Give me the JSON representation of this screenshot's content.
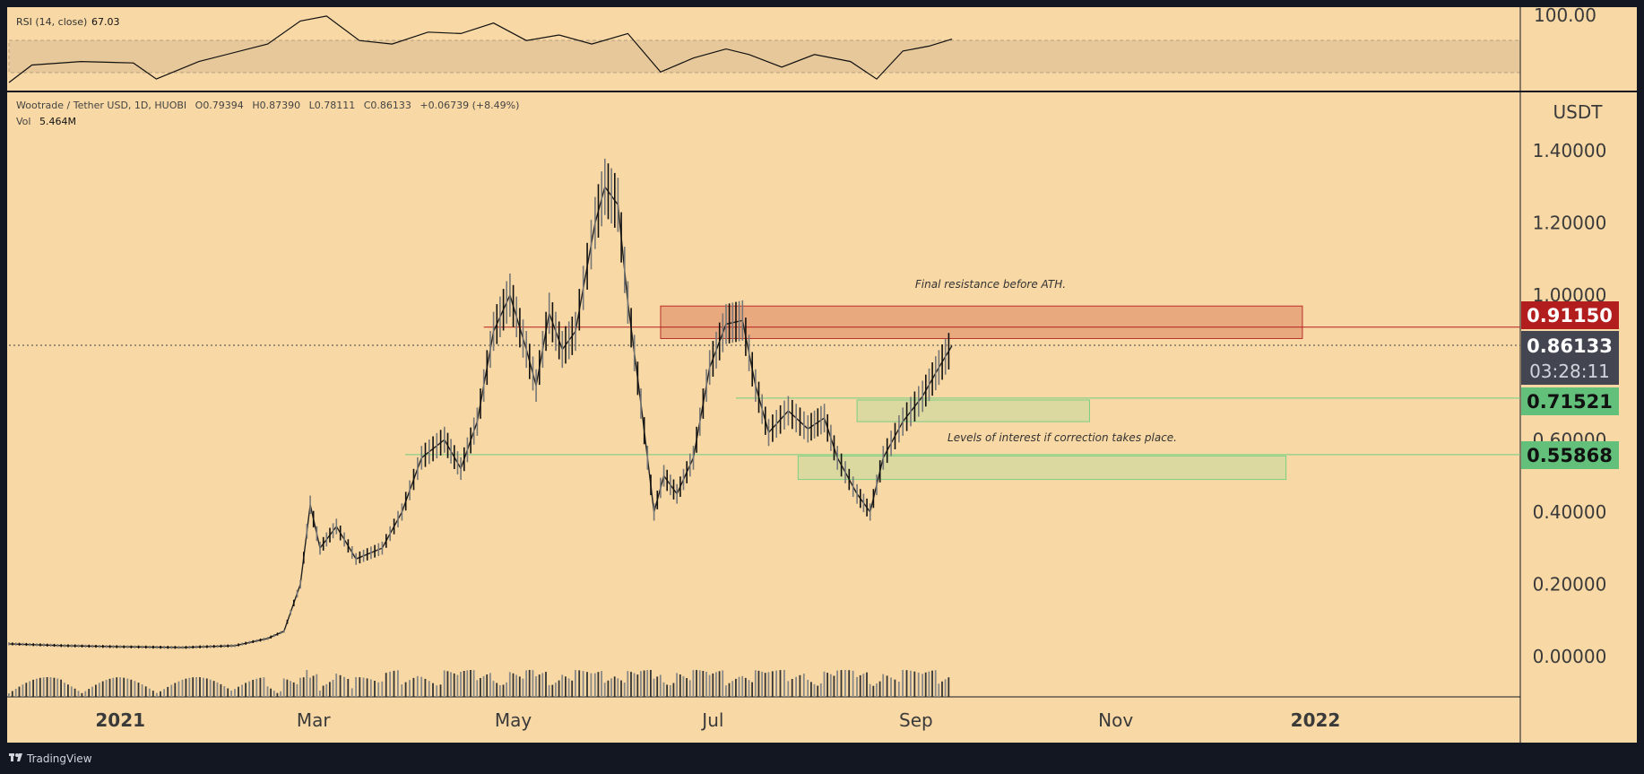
{
  "header": {
    "symbol": "Wootrade / Tether USD, 1D, HUOBI",
    "open_label": "O",
    "open": "0.79394",
    "high_label": "H",
    "high": "0.87390",
    "low_label": "L",
    "low": "0.78111",
    "close_label": "C",
    "close": "0.86133",
    "change": "+0.06739 (+8.49%)",
    "vol_label": "Vol",
    "vol": "5.464M"
  },
  "rsi": {
    "label": "RSI (14, close)",
    "value": "67.03",
    "top_tick": "100.00"
  },
  "price_axis": {
    "currency": "USDT",
    "tick_labels": [
      "1.40000",
      "1.20000",
      "1.00000",
      "0.60000",
      "0.40000",
      "0.20000",
      "0.00000"
    ]
  },
  "time_axis": {
    "labels": [
      "2021",
      "Mar",
      "May",
      "Jul",
      "Sep",
      "Nov",
      "2022"
    ]
  },
  "price_badges": {
    "resistance": "0.91150",
    "last_price": "0.86133",
    "countdown": "03:28:11",
    "support_1": "0.71521",
    "support_2": "0.55868"
  },
  "annotations": {
    "resistance_text": "Final resistance before ATH.",
    "support_text": "Levels of interest if correction takes place."
  },
  "brand": {
    "name": "TradingView"
  },
  "colors": {
    "background": "#f8d8a4",
    "frame": "#131722",
    "resistance_zone": "#e8a47c",
    "resistance_badge": "#b21e1e",
    "support_zone": "#d8d8a0",
    "support_line": "#6fcf80",
    "support_badge": "#63c07a",
    "last_price_badge": "#434651",
    "candle_up": "#ffffff",
    "candle_down": "#000000"
  },
  "chart_data": {
    "type": "candlestick",
    "title": "Wootrade / Tether USD, 1D, HUOBI",
    "xlabel": "",
    "ylabel": "USDT",
    "ylim": [
      -0.11,
      1.45
    ],
    "x_range": [
      "2020-11-28",
      "2022-03-04"
    ],
    "x_ticks": [
      "2021-01-01",
      "2021-03-01",
      "2021-05-01",
      "2021-07-01",
      "2021-09-01",
      "2021-11-01",
      "2022-01-01"
    ],
    "horizontal_levels": [
      0.9115,
      0.86133,
      0.71521,
      0.55868
    ],
    "zones": [
      {
        "name": "resistance",
        "y0": 0.88,
        "y1": 0.97,
        "x0": "2021-06-15",
        "x1": "2021-12-28"
      },
      {
        "name": "support-1",
        "y0": 0.65,
        "y1": 0.71,
        "x0": "2021-08-14",
        "x1": "2021-10-24"
      },
      {
        "name": "support-2",
        "y0": 0.49,
        "y1": 0.555,
        "x0": "2021-07-27",
        "x1": "2021-12-23"
      }
    ],
    "price_path": [
      [
        "2020-11-28",
        0.035
      ],
      [
        "2020-12-15",
        0.03
      ],
      [
        "2021-01-01",
        0.027
      ],
      [
        "2021-01-20",
        0.025
      ],
      [
        "2021-02-05",
        0.03
      ],
      [
        "2021-02-15",
        0.05
      ],
      [
        "2021-02-20",
        0.07
      ],
      [
        "2021-02-25",
        0.2
      ],
      [
        "2021-02-28",
        0.42
      ],
      [
        "2021-03-03",
        0.3
      ],
      [
        "2021-03-08",
        0.36
      ],
      [
        "2021-03-14",
        0.27
      ],
      [
        "2021-03-22",
        0.3
      ],
      [
        "2021-03-28",
        0.4
      ],
      [
        "2021-04-03",
        0.55
      ],
      [
        "2021-04-10",
        0.6
      ],
      [
        "2021-04-15",
        0.52
      ],
      [
        "2021-04-20",
        0.65
      ],
      [
        "2021-04-25",
        0.9
      ],
      [
        "2021-04-30",
        1.0
      ],
      [
        "2021-05-05",
        0.85
      ],
      [
        "2021-05-08",
        0.75
      ],
      [
        "2021-05-12",
        0.95
      ],
      [
        "2021-05-16",
        0.85
      ],
      [
        "2021-05-20",
        0.9
      ],
      [
        "2021-05-26",
        1.2
      ],
      [
        "2021-05-29",
        1.3
      ],
      [
        "2021-06-02",
        1.25
      ],
      [
        "2021-06-05",
        0.98
      ],
      [
        "2021-06-09",
        0.7
      ],
      [
        "2021-06-13",
        0.4
      ],
      [
        "2021-06-16",
        0.5
      ],
      [
        "2021-06-20",
        0.45
      ],
      [
        "2021-06-25",
        0.55
      ],
      [
        "2021-06-30",
        0.8
      ],
      [
        "2021-07-05",
        0.92
      ],
      [
        "2021-07-10",
        0.93
      ],
      [
        "2021-07-14",
        0.75
      ],
      [
        "2021-07-18",
        0.62
      ],
      [
        "2021-07-24",
        0.68
      ],
      [
        "2021-07-30",
        0.63
      ],
      [
        "2021-08-04",
        0.66
      ],
      [
        "2021-08-08",
        0.55
      ],
      [
        "2021-08-14",
        0.45
      ],
      [
        "2021-08-18",
        0.4
      ],
      [
        "2021-08-22",
        0.55
      ],
      [
        "2021-08-28",
        0.65
      ],
      [
        "2021-09-03",
        0.72
      ],
      [
        "2021-09-08",
        0.8
      ],
      [
        "2021-09-12",
        0.86
      ]
    ],
    "rsi_path": [
      [
        "2020-11-28",
        0
      ],
      [
        "2020-12-05",
        25
      ],
      [
        "2020-12-20",
        30
      ],
      [
        "2021-01-05",
        28
      ],
      [
        "2021-01-12",
        5
      ],
      [
        "2021-01-25",
        30
      ],
      [
        "2021-02-15",
        55
      ],
      [
        "2021-02-25",
        88
      ],
      [
        "2021-03-05",
        95
      ],
      [
        "2021-03-15",
        60
      ],
      [
        "2021-03-25",
        55
      ],
      [
        "2021-04-05",
        72
      ],
      [
        "2021-04-15",
        70
      ],
      [
        "2021-04-25",
        85
      ],
      [
        "2021-05-05",
        60
      ],
      [
        "2021-05-15",
        68
      ],
      [
        "2021-05-25",
        55
      ],
      [
        "2021-06-05",
        70
      ],
      [
        "2021-06-15",
        15
      ],
      [
        "2021-06-25",
        35
      ],
      [
        "2021-07-05",
        48
      ],
      [
        "2021-07-12",
        40
      ],
      [
        "2021-07-22",
        22
      ],
      [
        "2021-08-01",
        40
      ],
      [
        "2021-08-12",
        30
      ],
      [
        "2021-08-20",
        5
      ],
      [
        "2021-08-28",
        45
      ],
      [
        "2021-09-05",
        52
      ],
      [
        "2021-09-12",
        62
      ]
    ]
  }
}
